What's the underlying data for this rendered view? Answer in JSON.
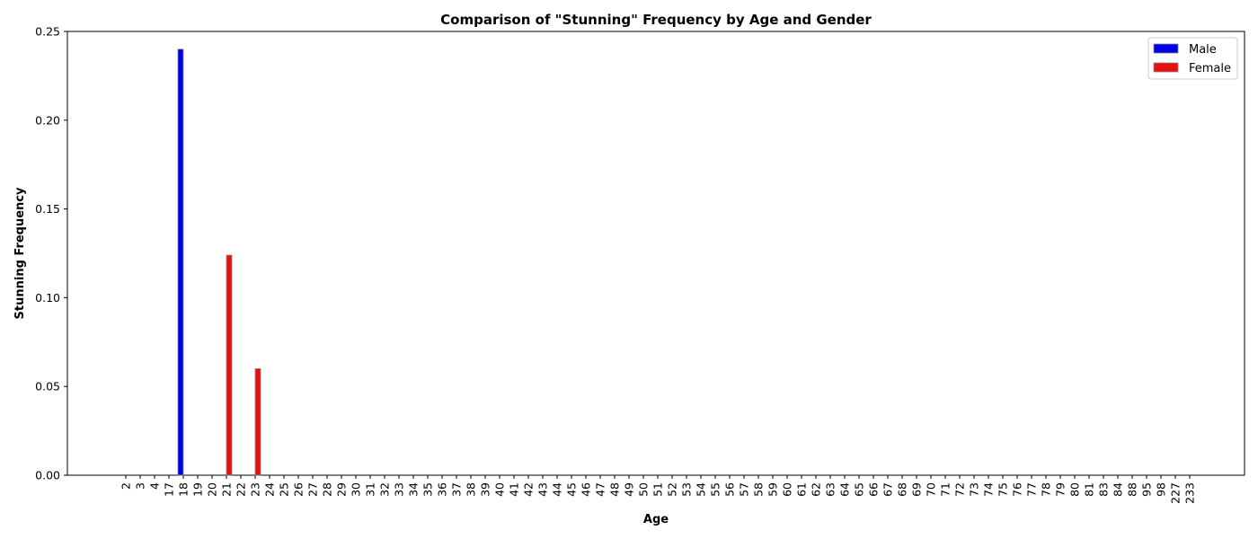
{
  "chart_data": {
    "type": "bar",
    "title": "Comparison of \"Stunning\" Frequency by Age and Gender",
    "xlabel": "Age",
    "ylabel": "Stunning Frequency",
    "ylim": [
      0,
      0.25
    ],
    "yticks": [
      "0.00",
      "0.05",
      "0.10",
      "0.15",
      "0.20",
      "0.25"
    ],
    "categories": [
      "2",
      "3",
      "4",
      "17",
      "18",
      "19",
      "20",
      "21",
      "22",
      "23",
      "24",
      "25",
      "26",
      "27",
      "28",
      "29",
      "30",
      "31",
      "32",
      "33",
      "34",
      "35",
      "36",
      "37",
      "38",
      "39",
      "40",
      "41",
      "42",
      "43",
      "44",
      "45",
      "46",
      "47",
      "48",
      "49",
      "50",
      "51",
      "52",
      "53",
      "54",
      "55",
      "56",
      "57",
      "58",
      "59",
      "60",
      "61",
      "62",
      "63",
      "64",
      "65",
      "66",
      "67",
      "68",
      "69",
      "70",
      "71",
      "72",
      "73",
      "74",
      "75",
      "76",
      "77",
      "78",
      "79",
      "80",
      "81",
      "83",
      "84",
      "88",
      "95",
      "98",
      "227",
      "233"
    ],
    "series": [
      {
        "name": "Male",
        "color": "#0000e6",
        "values": [
          0,
          0,
          0,
          0,
          0.24,
          0,
          0,
          0,
          0,
          0,
          0,
          0,
          0,
          0,
          0,
          0,
          0,
          0,
          0,
          0,
          0,
          0,
          0,
          0,
          0,
          0,
          0,
          0,
          0,
          0,
          0,
          0,
          0,
          0,
          0,
          0,
          0,
          0,
          0,
          0,
          0,
          0,
          0,
          0,
          0,
          0,
          0,
          0,
          0,
          0,
          0,
          0,
          0,
          0,
          0,
          0,
          0,
          0,
          0,
          0,
          0,
          0,
          0,
          0,
          0,
          0,
          0,
          0,
          0,
          0,
          0,
          0,
          0,
          0,
          0
        ]
      },
      {
        "name": "Female",
        "color": "#e61010",
        "values": [
          0,
          0,
          0,
          0,
          0,
          0,
          0,
          0.124,
          0,
          0.06,
          0,
          0,
          0,
          0,
          0,
          0,
          0,
          0,
          0,
          0,
          0,
          0,
          0,
          0,
          0,
          0,
          0,
          0,
          0,
          0,
          0,
          0,
          0,
          0,
          0,
          0,
          0,
          0,
          0,
          0,
          0,
          0,
          0,
          0,
          0,
          0,
          0,
          0,
          0,
          0,
          0,
          0,
          0,
          0,
          0,
          0,
          0,
          0,
          0,
          0,
          0,
          0,
          0,
          0,
          0,
          0,
          0,
          0,
          0,
          0,
          0,
          0,
          0,
          0,
          0
        ]
      }
    ],
    "legend": "top-right",
    "grid": false
  }
}
